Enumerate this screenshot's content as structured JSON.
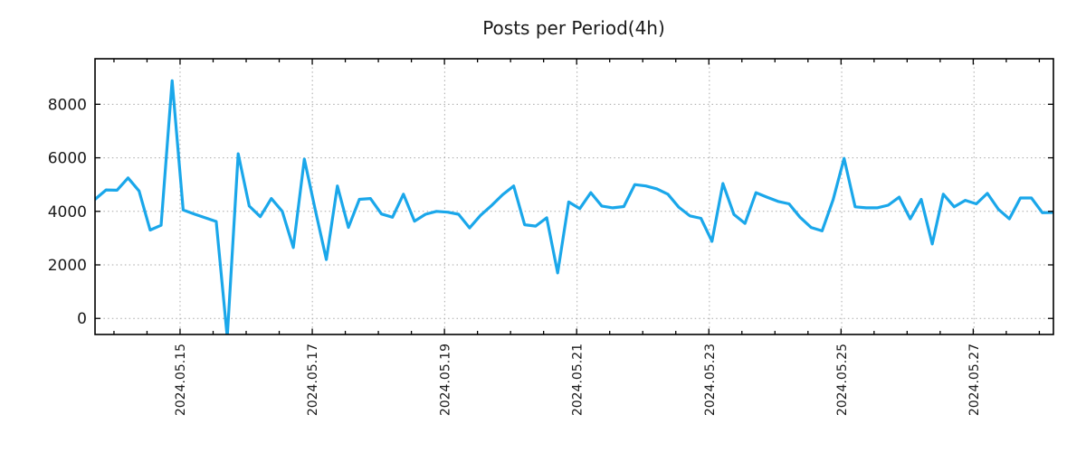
{
  "chart_data": {
    "type": "line",
    "title": "Posts per Period(4h)",
    "x_unit": "4h period",
    "x_tick_labels": [
      "2024.05.15",
      "2024.05.17",
      "2024.05.19",
      "2024.05.21",
      "2024.05.23",
      "2024.05.25",
      "2024.05.27"
    ],
    "x_tick_indices": [
      7.72,
      19.73,
      31.74,
      43.76,
      55.77,
      67.78,
      79.79
    ],
    "x_minor_tick_interval_points": 3,
    "y_tick_labels": [
      "0",
      "2000",
      "4000",
      "6000",
      "8000"
    ],
    "y_ticks": [
      0,
      2000,
      4000,
      6000,
      8000
    ],
    "ylim": [
      -600,
      9700
    ],
    "grid": "dotted",
    "legend": "none",
    "colors": {
      "line": "#1AA7EA",
      "grid": "#A8A8A8",
      "axis": "#000000",
      "text": "#1A1A1A"
    },
    "series": [
      {
        "name": "posts",
        "values": [
          4450,
          4800,
          4790,
          5250,
          4760,
          3300,
          3480,
          8880,
          4050,
          3900,
          3760,
          3620,
          -700,
          6150,
          4200,
          3800,
          4480,
          4000,
          2650,
          5950,
          4050,
          2200,
          4950,
          3400,
          4450,
          4480,
          3900,
          3780,
          4640,
          3630,
          3890,
          4000,
          3970,
          3890,
          3380,
          3850,
          4220,
          4620,
          4950,
          3500,
          3450,
          3760,
          1700,
          4350,
          4100,
          4700,
          4200,
          4130,
          4180,
          5000,
          4950,
          4840,
          4640,
          4150,
          3830,
          3740,
          2880,
          5040,
          3880,
          3550,
          4700,
          4530,
          4370,
          4280,
          3780,
          3400,
          3270,
          4440,
          5980,
          4170,
          4130,
          4130,
          4230,
          4530,
          3720,
          4450,
          2780,
          4640,
          4170,
          4410,
          4280,
          4670,
          4080,
          3720,
          4500,
          4500,
          3950,
          3960
        ]
      }
    ]
  }
}
